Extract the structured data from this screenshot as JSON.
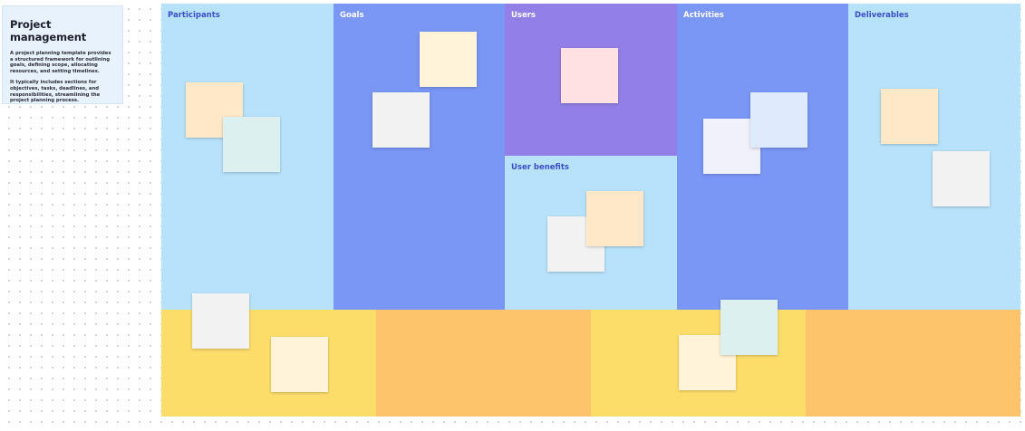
{
  "intro": {
    "title": "Project management",
    "paragraph1": "A project planning template provides a structured framework for outlining goals, defining scope, allocating resources, and setting timelines.",
    "paragraph2": "It typically includes sections for objectives, tasks, deadlines, and responsibilities, streamlining the project planning process."
  },
  "panels": {
    "participants": "Participants",
    "goals": "Goals",
    "users": "Users",
    "user_benefits": "User benefits",
    "activities": "Activities",
    "deliverables": "Deliverables"
  },
  "colors": {
    "light_blue": "#b8e2fb",
    "periwinkle": "#7a97f5",
    "purple": "#9280e8",
    "yellow": "#fddd6a",
    "orange": "#fec46c"
  },
  "stickies": [
    {
      "panel": "participants",
      "color": "#ffe8c8"
    },
    {
      "panel": "participants",
      "color": "#dcf1ef"
    },
    {
      "panel": "goals",
      "color": "#fff4da"
    },
    {
      "panel": "goals",
      "color": "#f2f2f2"
    },
    {
      "panel": "users",
      "color": "#ffe1e4"
    },
    {
      "panel": "user_benefits",
      "color": "#f2f2f2"
    },
    {
      "panel": "user_benefits",
      "color": "#ffe8c8"
    },
    {
      "panel": "activities",
      "color": "#f1f1fc"
    },
    {
      "panel": "activities",
      "color": "#dfebfc"
    },
    {
      "panel": "deliverables",
      "color": "#ffe8c8"
    },
    {
      "panel": "deliverables",
      "color": "#f2f2f2"
    },
    {
      "panel": "band-1",
      "color": "#f2f2f2"
    },
    {
      "panel": "band-1",
      "color": "#fff4da"
    },
    {
      "panel": "band-3",
      "color": "#fff4da"
    },
    {
      "panel": "band-3",
      "color": "#dcf1ef"
    }
  ]
}
